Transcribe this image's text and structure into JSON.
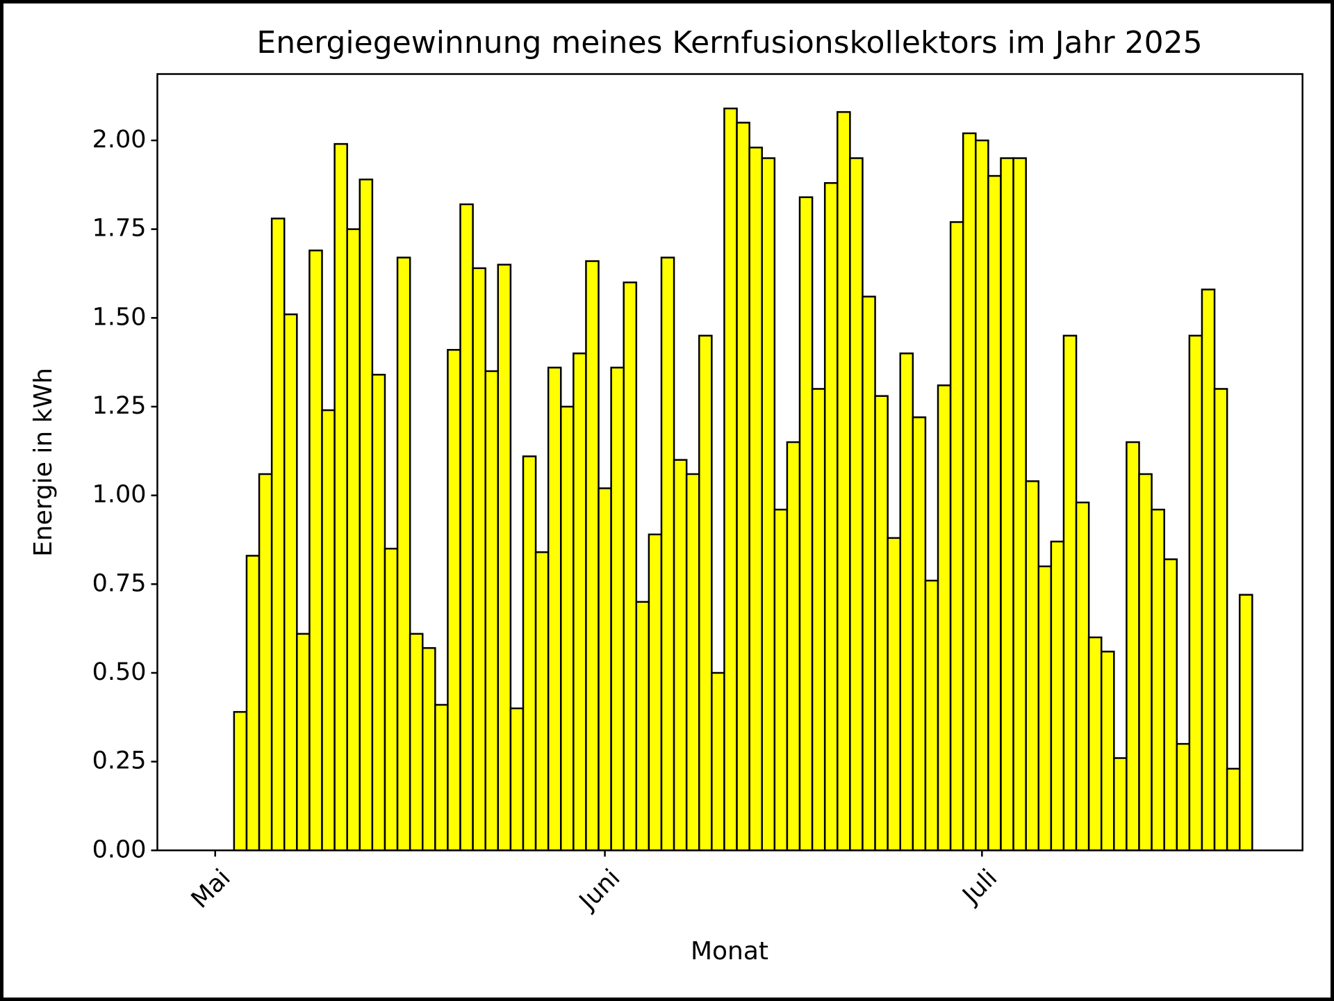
{
  "chart_data": {
    "type": "bar",
    "title": "Energiegewinnung meines Kernfusionskollektors im Jahr 2025",
    "xlabel": "Monat",
    "ylabel": "Energie in kWh",
    "color": "#ffff00",
    "edgecolor": "#000000",
    "x": [
      0,
      1,
      2,
      3,
      4,
      5,
      6,
      7,
      8,
      9,
      10,
      11,
      12,
      13,
      14,
      15,
      16,
      17,
      18,
      19,
      20,
      21,
      22,
      23,
      24,
      25,
      26,
      27,
      28,
      29,
      30,
      31,
      32,
      33,
      34,
      35,
      36,
      37,
      38,
      39,
      40,
      41,
      42,
      43,
      44,
      45,
      46,
      47,
      48,
      49,
      50,
      51,
      52,
      53,
      54,
      55,
      56,
      57,
      58,
      59,
      60,
      61,
      62,
      63,
      64,
      65,
      66,
      67,
      68,
      69,
      70,
      71,
      72,
      73,
      74,
      75,
      76,
      77,
      78,
      79,
      80,
      81,
      82
    ],
    "values": [
      0,
      0,
      0.39,
      0.83,
      1.06,
      1.78,
      1.51,
      0.61,
      1.69,
      1.24,
      1.99,
      1.75,
      1.89,
      1.34,
      0.85,
      1.67,
      0.61,
      0.57,
      0.41,
      1.41,
      1.82,
      1.64,
      1.35,
      1.65,
      0.4,
      1.11,
      0.84,
      1.36,
      1.25,
      1.4,
      1.66,
      1.02,
      1.36,
      1.6,
      0.7,
      0.89,
      1.67,
      1.1,
      1.06,
      1.45,
      0.5,
      2.09,
      2.05,
      1.98,
      1.95,
      0.96,
      1.15,
      1.84,
      1.3,
      1.88,
      2.08,
      1.95,
      1.56,
      1.28,
      0.88,
      1.4,
      1.22,
      0.76,
      1.31,
      1.77,
      2.02,
      2.0,
      1.9,
      1.95,
      1.95,
      1.04,
      0.8,
      0.87,
      1.45,
      0.98,
      0.6,
      0.56,
      0.26,
      1.15,
      1.06,
      0.96,
      0.82,
      0.3,
      1.45,
      1.58,
      1.3,
      0.23,
      0.72
    ],
    "xlim": [
      -4.6,
      86.5
    ],
    "xticks": [
      {
        "value": 0,
        "label": "Mai"
      },
      {
        "value": 31,
        "label": "Juni"
      },
      {
        "value": 61,
        "label": "Juli"
      }
    ],
    "ylim": [
      0,
      2.187
    ],
    "yticks": [
      {
        "value": 0,
        "label": "0.00"
      },
      {
        "value": 0.25,
        "label": "0.25"
      },
      {
        "value": 0.5,
        "label": "0.50"
      },
      {
        "value": 0.75,
        "label": "0.75"
      },
      {
        "value": 1,
        "label": "1.00"
      },
      {
        "value": 1.25,
        "label": "1.25"
      },
      {
        "value": 1.5,
        "label": "1.50"
      },
      {
        "value": 1.75,
        "label": "1.75"
      },
      {
        "value": 2,
        "label": "2.00"
      }
    ]
  }
}
